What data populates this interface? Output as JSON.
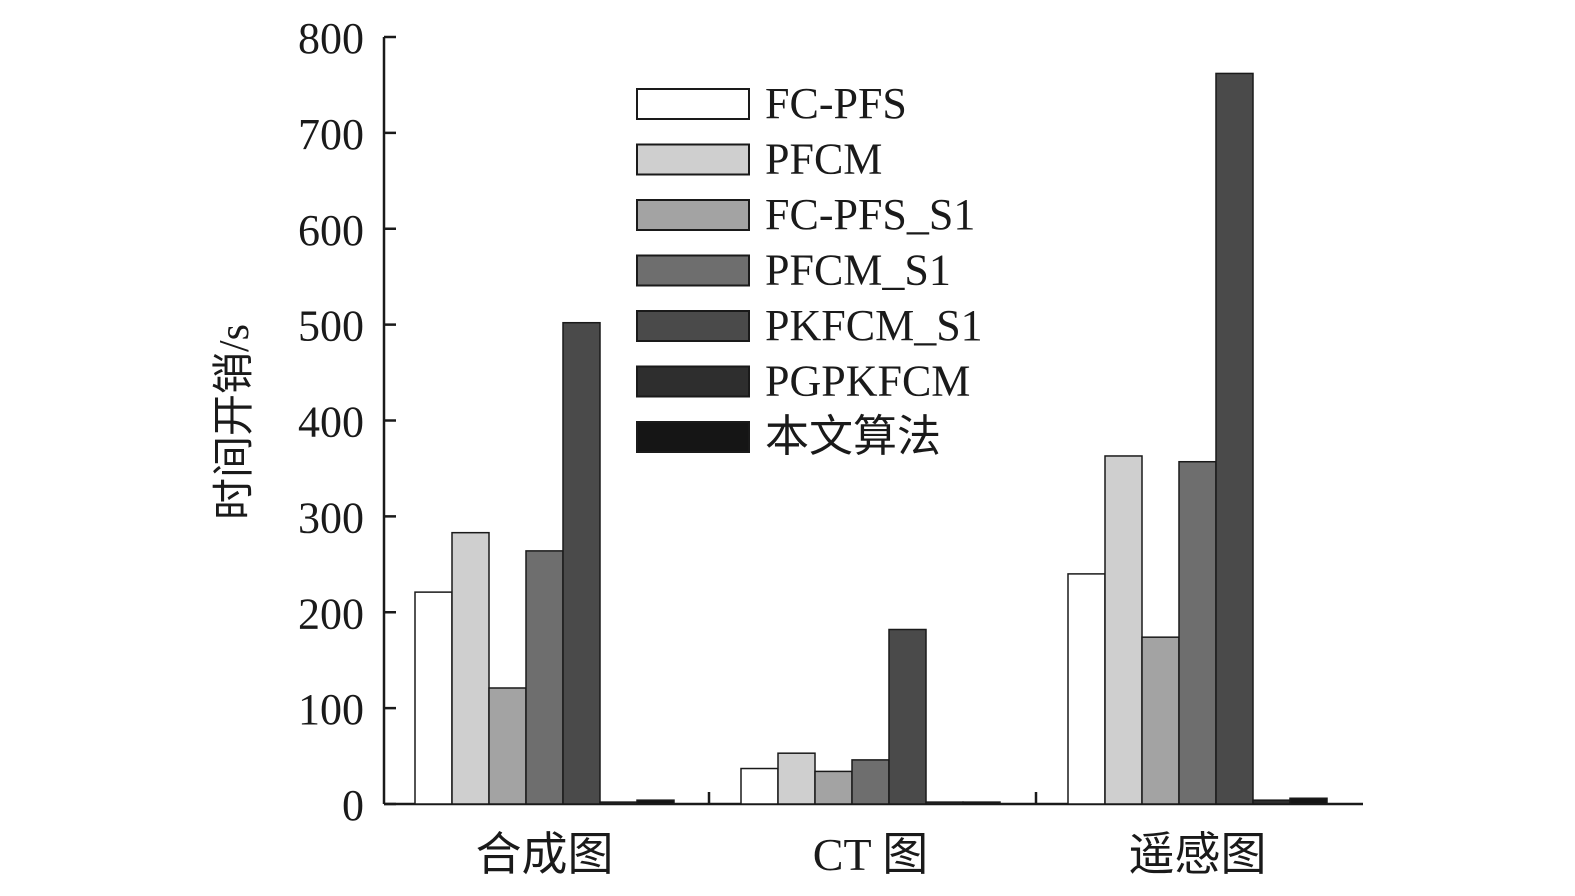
{
  "chart_data": {
    "type": "bar",
    "title": "",
    "xlabel": "",
    "ylabel": "时间开销/s",
    "ylim": [
      0,
      800
    ],
    "yticks": [
      0,
      100,
      200,
      300,
      400,
      500,
      600,
      700,
      800
    ],
    "ytick_labels": [
      "0",
      "100",
      "200",
      "300",
      "400",
      "500",
      "600",
      "700",
      "800"
    ],
    "categories": [
      "合成图",
      "CT 图",
      "遥感图"
    ],
    "legend_position": "top-center",
    "grid": false,
    "series": [
      {
        "name": "FC-PFS",
        "color": "#ffffff",
        "values": [
          221,
          37,
          240
        ]
      },
      {
        "name": "PFCM",
        "color": "#cfcfcf",
        "values": [
          283,
          53,
          363
        ]
      },
      {
        "name": "FC-PFS_S1",
        "color": "#a3a3a3",
        "values": [
          121,
          34,
          174
        ]
      },
      {
        "name": "PFCM_S1",
        "color": "#6e6e6e",
        "values": [
          264,
          46,
          357
        ]
      },
      {
        "name": "PKFCM_S1",
        "color": "#4a4a4a",
        "values": [
          502,
          182,
          762
        ]
      },
      {
        "name": "PGPKFCM",
        "color": "#2e2e2e",
        "values": [
          2,
          2,
          4
        ]
      },
      {
        "name": "本文算法",
        "color": "#151515",
        "values": [
          4,
          2,
          6
        ]
      }
    ]
  }
}
